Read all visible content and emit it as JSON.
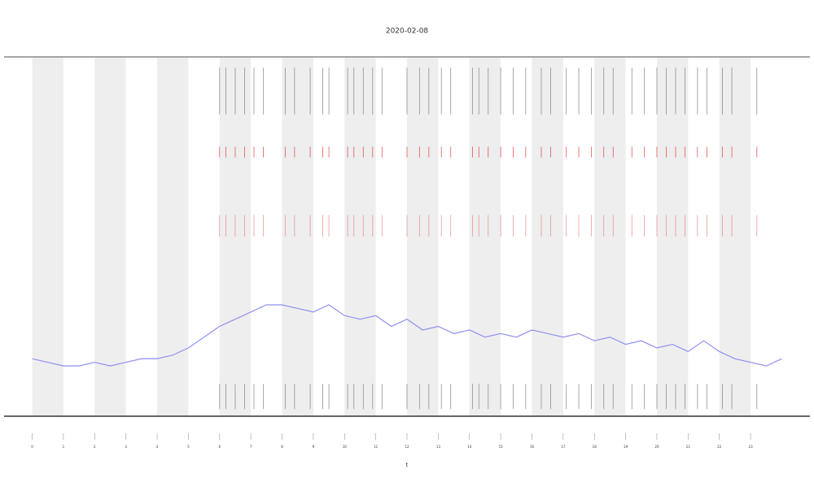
{
  "chart_data": {
    "type": "line",
    "title": "2020-02-08",
    "xlabel": "t",
    "x": [
      0,
      0.5,
      1,
      1.5,
      2,
      2.5,
      3,
      3.5,
      4,
      4.5,
      5,
      5.5,
      6,
      6.5,
      7,
      7.5,
      8,
      8.5,
      9,
      9.5,
      10,
      10.5,
      11,
      11.5,
      12,
      12.5,
      13,
      13.5,
      14,
      14.5,
      15,
      15.5,
      16,
      16.5,
      17,
      17.5,
      18,
      18.5,
      19,
      19.5,
      20,
      20.5,
      21,
      21.5,
      22,
      22.5,
      23,
      23.5,
      24
    ],
    "series": [
      {
        "color": "#8f8ff0",
        "values": [
          16,
          15,
          14,
          14,
          15,
          14,
          15,
          16,
          16,
          17,
          19,
          22,
          25,
          27,
          29,
          31,
          31,
          30,
          29,
          31,
          28,
          27,
          28,
          25,
          27,
          24,
          25,
          23,
          24,
          22,
          23,
          22,
          24,
          23,
          22,
          23,
          21,
          22,
          20,
          21,
          19,
          20,
          18,
          21,
          18,
          16,
          15,
          14,
          16
        ]
      }
    ],
    "xlim": [
      -0.9,
      24.9
    ],
    "ylim": [
      0,
      100
    ],
    "xticks": [
      0,
      1,
      2,
      3,
      4,
      5,
      6,
      7,
      8,
      9,
      10,
      11,
      12,
      13,
      14,
      15,
      16,
      17,
      18,
      19,
      20,
      21,
      22,
      23
    ],
    "shaded_bands": [
      [
        0,
        1
      ],
      [
        2,
        3
      ],
      [
        4,
        5
      ],
      [
        6,
        7
      ],
      [
        8,
        9
      ],
      [
        10,
        11
      ],
      [
        12,
        13
      ],
      [
        14,
        15
      ],
      [
        16,
        17
      ],
      [
        18,
        19
      ],
      [
        20,
        21
      ],
      [
        22,
        23
      ]
    ],
    "band_color": "#eeeeee",
    "events": [
      6.0,
      6.2,
      6.5,
      6.8,
      7.1,
      7.4,
      8.1,
      8.4,
      8.9,
      9.3,
      9.5,
      10.1,
      10.3,
      10.6,
      10.9,
      11.2,
      12.0,
      12.4,
      12.7,
      13.1,
      13.4,
      14.1,
      14.3,
      14.6,
      15.0,
      15.4,
      15.8,
      16.3,
      16.6,
      17.1,
      17.5,
      17.9,
      18.3,
      18.6,
      19.2,
      19.6,
      20.0,
      20.3,
      20.6,
      20.9,
      21.3,
      21.6,
      22.1,
      22.4,
      23.2
    ],
    "event_rows": [
      {
        "color": "#777777",
        "range": [
          84,
          97
        ]
      },
      {
        "color": "#e03030",
        "range": [
          72,
          75
        ]
      },
      {
        "color": "#e88080",
        "range": [
          50,
          56
        ]
      },
      {
        "color": "#777777",
        "range": [
          2,
          9
        ]
      }
    ]
  }
}
